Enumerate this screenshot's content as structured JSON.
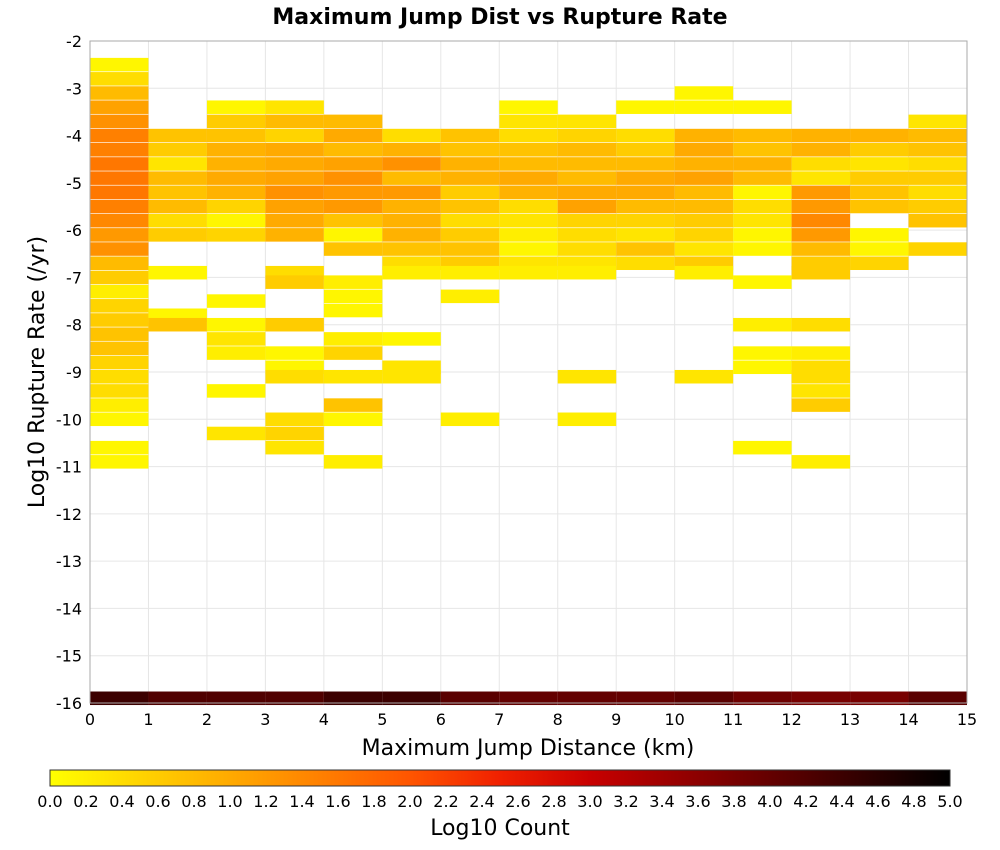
{
  "chart_data": {
    "type": "heatmap",
    "title": "Maximum Jump Dist vs Rupture Rate",
    "xlabel": "Maximum Jump Distance (km)",
    "ylabel": "Log10 Rupture Rate (/yr)",
    "xlim": [
      0,
      15
    ],
    "ylim": [
      -16,
      -2
    ],
    "x_ticks": [
      "0",
      "1",
      "2",
      "3",
      "4",
      "5",
      "6",
      "7",
      "8",
      "9",
      "10",
      "11",
      "12",
      "13",
      "14",
      "15"
    ],
    "y_ticks": [
      "-2",
      "-3",
      "-4",
      "-5",
      "-6",
      "-7",
      "-8",
      "-9",
      "-10",
      "-11",
      "-12",
      "-13",
      "-14",
      "-15",
      "-16"
    ],
    "x_bin_width": 1,
    "y_bin_height": 0.286,
    "grid": true,
    "colorbar": {
      "label": "Log10 Count",
      "min": 0.0,
      "max": 5.0,
      "ticks": [
        "0.0",
        "0.2",
        "0.4",
        "0.6",
        "0.8",
        "1.0",
        "1.2",
        "1.4",
        "1.6",
        "1.8",
        "2.0",
        "2.2",
        "2.4",
        "2.6",
        "2.8",
        "3.0",
        "3.2",
        "3.4",
        "3.6",
        "3.8",
        "4.0",
        "4.2",
        "4.4",
        "4.6",
        "4.8",
        "5.0"
      ],
      "colors": [
        "#ffff00",
        "#ffd400",
        "#ffaa00",
        "#ff8000",
        "#ff5500",
        "#f02000",
        "#c80000",
        "#960000",
        "#640000",
        "#320000",
        "#000000"
      ]
    },
    "cells": [
      [
        0,
        -2.5,
        0.1
      ],
      [
        0,
        -2.8,
        0.4
      ],
      [
        0,
        -3.1,
        0.8
      ],
      [
        0,
        -3.4,
        1.1
      ],
      [
        0,
        -3.7,
        1.3
      ],
      [
        0,
        -4.0,
        1.5
      ],
      [
        0,
        -4.3,
        1.5
      ],
      [
        0,
        -4.6,
        1.6
      ],
      [
        0,
        -4.9,
        1.6
      ],
      [
        0,
        -5.2,
        1.6
      ],
      [
        0,
        -5.5,
        1.5
      ],
      [
        0,
        -5.8,
        1.4
      ],
      [
        0,
        -6.1,
        1.2
      ],
      [
        0,
        -6.4,
        1.3
      ],
      [
        0,
        -6.7,
        0.8
      ],
      [
        0,
        -7.0,
        0.6
      ],
      [
        0,
        -7.3,
        0.2
      ],
      [
        0,
        -7.6,
        0.5
      ],
      [
        0,
        -7.9,
        0.6
      ],
      [
        0,
        -8.2,
        0.7
      ],
      [
        0,
        -8.5,
        0.7
      ],
      [
        0,
        -8.8,
        0.5
      ],
      [
        0,
        -9.1,
        0.4
      ],
      [
        0,
        -9.4,
        0.4
      ],
      [
        0,
        -9.7,
        0.2
      ],
      [
        0,
        -10.0,
        0.1
      ],
      [
        0,
        -10.6,
        0.1
      ],
      [
        0,
        -10.9,
        0.1
      ],
      [
        1,
        -4.0,
        0.7
      ],
      [
        1,
        -4.3,
        0.6
      ],
      [
        1,
        -4.6,
        0.3
      ],
      [
        1,
        -4.9,
        0.8
      ],
      [
        1,
        -5.2,
        0.7
      ],
      [
        1,
        -5.5,
        0.8
      ],
      [
        1,
        -5.8,
        0.4
      ],
      [
        1,
        -6.1,
        0.6
      ],
      [
        1,
        -6.9,
        0.1
      ],
      [
        1,
        -7.8,
        0.1
      ],
      [
        1,
        -8.0,
        0.7
      ],
      [
        2,
        -3.4,
        0.1
      ],
      [
        2,
        -3.7,
        0.6
      ],
      [
        2,
        -4.0,
        0.7
      ],
      [
        2,
        -4.3,
        0.9
      ],
      [
        2,
        -4.6,
        0.9
      ],
      [
        2,
        -4.9,
        1.0
      ],
      [
        2,
        -5.2,
        0.9
      ],
      [
        2,
        -5.5,
        0.5
      ],
      [
        2,
        -5.8,
        0.1
      ],
      [
        2,
        -6.1,
        0.5
      ],
      [
        2,
        -7.5,
        0.1
      ],
      [
        2,
        -8.0,
        0.1
      ],
      [
        2,
        -8.3,
        0.3
      ],
      [
        2,
        -8.6,
        0.2
      ],
      [
        2,
        -9.4,
        0.1
      ],
      [
        2,
        -10.3,
        0.3
      ],
      [
        3,
        -3.4,
        0.3
      ],
      [
        3,
        -3.7,
        0.8
      ],
      [
        3,
        -4.0,
        0.5
      ],
      [
        3,
        -4.3,
        1.0
      ],
      [
        3,
        -4.6,
        1.0
      ],
      [
        3,
        -4.9,
        1.1
      ],
      [
        3,
        -5.2,
        1.3
      ],
      [
        3,
        -5.5,
        1.1
      ],
      [
        3,
        -5.8,
        1.0
      ],
      [
        3,
        -6.1,
        0.9
      ],
      [
        3,
        -6.9,
        0.4
      ],
      [
        3,
        -7.1,
        0.6
      ],
      [
        3,
        -8.0,
        0.6
      ],
      [
        3,
        -8.6,
        0.1
      ],
      [
        3,
        -8.9,
        0.1
      ],
      [
        3,
        -9.1,
        0.4
      ],
      [
        3,
        -10.0,
        0.4
      ],
      [
        3,
        -10.3,
        0.5
      ],
      [
        3,
        -10.6,
        0.3
      ],
      [
        4,
        -3.7,
        0.8
      ],
      [
        4,
        -4.0,
        1.0
      ],
      [
        4,
        -4.3,
        0.8
      ],
      [
        4,
        -4.6,
        1.1
      ],
      [
        4,
        -4.9,
        1.3
      ],
      [
        4,
        -5.2,
        1.2
      ],
      [
        4,
        -5.5,
        1.2
      ],
      [
        4,
        -5.8,
        0.7
      ],
      [
        4,
        -6.1,
        0.1
      ],
      [
        4,
        -6.4,
        0.7
      ],
      [
        4,
        -7.1,
        0.2
      ],
      [
        4,
        -7.4,
        0.1
      ],
      [
        4,
        -7.7,
        0.1
      ],
      [
        4,
        -8.3,
        0.2
      ],
      [
        4,
        -8.6,
        0.5
      ],
      [
        4,
        -9.1,
        0.3
      ],
      [
        4,
        -9.7,
        0.7
      ],
      [
        4,
        -10.0,
        0.1
      ],
      [
        4,
        -10.9,
        0.2
      ],
      [
        5,
        -4.0,
        0.4
      ],
      [
        5,
        -4.3,
        0.9
      ],
      [
        5,
        -4.6,
        1.3
      ],
      [
        5,
        -4.9,
        0.8
      ],
      [
        5,
        -5.2,
        1.2
      ],
      [
        5,
        -5.5,
        0.9
      ],
      [
        5,
        -5.8,
        0.9
      ],
      [
        5,
        -6.1,
        0.9
      ],
      [
        5,
        -6.4,
        0.7
      ],
      [
        5,
        -6.7,
        0.4
      ],
      [
        5,
        -6.9,
        0.2
      ],
      [
        5,
        -8.3,
        0.1
      ],
      [
        5,
        -8.9,
        0.3
      ],
      [
        5,
        -9.1,
        0.3
      ],
      [
        6,
        -4.0,
        0.7
      ],
      [
        6,
        -4.3,
        0.7
      ],
      [
        6,
        -4.6,
        0.9
      ],
      [
        6,
        -4.9,
        0.9
      ],
      [
        6,
        -5.2,
        0.6
      ],
      [
        6,
        -5.5,
        0.7
      ],
      [
        6,
        -5.8,
        0.4
      ],
      [
        6,
        -6.1,
        0.6
      ],
      [
        6,
        -6.4,
        0.7
      ],
      [
        6,
        -6.7,
        0.6
      ],
      [
        6,
        -6.9,
        0.2
      ],
      [
        6,
        -7.4,
        0.2
      ],
      [
        6,
        -10.0,
        0.2
      ],
      [
        7,
        -3.4,
        0.1
      ],
      [
        7,
        -3.7,
        0.3
      ],
      [
        7,
        -4.0,
        0.4
      ],
      [
        7,
        -4.3,
        0.7
      ],
      [
        7,
        -4.6,
        0.8
      ],
      [
        7,
        -4.9,
        1.0
      ],
      [
        7,
        -5.2,
        0.9
      ],
      [
        7,
        -5.5,
        0.4
      ],
      [
        7,
        -5.8,
        0.3
      ],
      [
        7,
        -6.1,
        0.2
      ],
      [
        7,
        -6.4,
        0.1
      ],
      [
        7,
        -6.7,
        0.3
      ],
      [
        7,
        -6.9,
        0.2
      ],
      [
        8,
        -3.7,
        0.3
      ],
      [
        8,
        -4.0,
        0.5
      ],
      [
        8,
        -4.3,
        0.8
      ],
      [
        8,
        -4.6,
        0.8
      ],
      [
        8,
        -4.9,
        0.8
      ],
      [
        8,
        -5.2,
        1.0
      ],
      [
        8,
        -5.5,
        1.1
      ],
      [
        8,
        -5.8,
        0.5
      ],
      [
        8,
        -6.1,
        0.4
      ],
      [
        8,
        -6.4,
        0.4
      ],
      [
        8,
        -6.7,
        0.3
      ],
      [
        8,
        -6.9,
        0.2
      ],
      [
        8,
        -9.1,
        0.3
      ],
      [
        8,
        -10.0,
        0.2
      ],
      [
        9,
        -3.4,
        0.1
      ],
      [
        9,
        -4.0,
        0.4
      ],
      [
        9,
        -4.3,
        0.6
      ],
      [
        9,
        -4.6,
        0.8
      ],
      [
        9,
        -4.9,
        1.0
      ],
      [
        9,
        -5.2,
        1.0
      ],
      [
        9,
        -5.5,
        0.8
      ],
      [
        9,
        -5.8,
        0.5
      ],
      [
        9,
        -6.1,
        0.3
      ],
      [
        9,
        -6.4,
        0.7
      ],
      [
        9,
        -6.7,
        0.4
      ],
      [
        10,
        -3.1,
        0.1
      ],
      [
        10,
        -3.4,
        0.1
      ],
      [
        10,
        -4.0,
        0.9
      ],
      [
        10,
        -4.3,
        1.0
      ],
      [
        10,
        -4.6,
        0.9
      ],
      [
        10,
        -4.9,
        1.1
      ],
      [
        10,
        -5.2,
        0.8
      ],
      [
        10,
        -5.5,
        0.8
      ],
      [
        10,
        -5.8,
        0.6
      ],
      [
        10,
        -6.1,
        0.5
      ],
      [
        10,
        -6.4,
        0.3
      ],
      [
        10,
        -6.7,
        0.6
      ],
      [
        10,
        -6.9,
        0.2
      ],
      [
        10,
        -9.1,
        0.3
      ],
      [
        11,
        -3.4,
        0.1
      ],
      [
        11,
        -4.0,
        0.8
      ],
      [
        11,
        -4.3,
        0.7
      ],
      [
        11,
        -4.6,
        0.9
      ],
      [
        11,
        -4.9,
        0.8
      ],
      [
        11,
        -5.2,
        0.1
      ],
      [
        11,
        -5.5,
        0.4
      ],
      [
        11,
        -5.8,
        0.3
      ],
      [
        11,
        -6.1,
        0.1
      ],
      [
        11,
        -6.4,
        0.1
      ],
      [
        11,
        -7.1,
        0.1
      ],
      [
        11,
        -8.0,
        0.2
      ],
      [
        11,
        -8.6,
        0.1
      ],
      [
        11,
        -8.9,
        0.1
      ],
      [
        11,
        -10.6,
        0.1
      ],
      [
        12,
        -4.0,
        0.9
      ],
      [
        12,
        -4.3,
        0.9
      ],
      [
        12,
        -4.6,
        0.4
      ],
      [
        12,
        -4.9,
        0.3
      ],
      [
        12,
        -5.2,
        1.2
      ],
      [
        12,
        -5.5,
        1.2
      ],
      [
        12,
        -5.8,
        1.4
      ],
      [
        12,
        -6.1,
        1.2
      ],
      [
        12,
        -6.4,
        0.8
      ],
      [
        12,
        -6.7,
        0.6
      ],
      [
        12,
        -6.9,
        0.6
      ],
      [
        12,
        -8.0,
        0.4
      ],
      [
        12,
        -8.6,
        0.2
      ],
      [
        12,
        -8.9,
        0.4
      ],
      [
        12,
        -9.1,
        0.4
      ],
      [
        12,
        -9.4,
        0.3
      ],
      [
        12,
        -9.7,
        0.6
      ],
      [
        12,
        -10.9,
        0.2
      ],
      [
        13,
        -4.0,
        0.9
      ],
      [
        13,
        -4.3,
        0.6
      ],
      [
        13,
        -4.6,
        0.3
      ],
      [
        13,
        -4.9,
        0.6
      ],
      [
        13,
        -5.2,
        0.7
      ],
      [
        13,
        -5.5,
        0.7
      ],
      [
        13,
        -6.1,
        0.1
      ],
      [
        13,
        -6.4,
        0.1
      ],
      [
        13,
        -6.7,
        0.5
      ],
      [
        14,
        -3.7,
        0.3
      ],
      [
        14,
        -4.0,
        0.8
      ],
      [
        14,
        -4.3,
        0.7
      ],
      [
        14,
        -4.6,
        0.4
      ],
      [
        14,
        -4.9,
        0.6
      ],
      [
        14,
        -5.2,
        0.4
      ],
      [
        14,
        -5.5,
        0.6
      ],
      [
        14,
        -5.8,
        0.7
      ],
      [
        14,
        -6.4,
        0.5
      ],
      [
        0,
        -15.9,
        4.4
      ],
      [
        1,
        -15.9,
        4.2
      ],
      [
        2,
        -15.9,
        4.2
      ],
      [
        3,
        -15.9,
        4.2
      ],
      [
        4,
        -15.9,
        4.4
      ],
      [
        5,
        -15.9,
        4.4
      ],
      [
        6,
        -15.9,
        4.1
      ],
      [
        7,
        -15.9,
        4.0
      ],
      [
        8,
        -15.9,
        4.0
      ],
      [
        9,
        -15.9,
        4.0
      ],
      [
        10,
        -15.9,
        4.1
      ],
      [
        11,
        -15.9,
        3.9
      ],
      [
        12,
        -15.9,
        3.8
      ],
      [
        13,
        -15.9,
        3.8
      ],
      [
        14,
        -15.9,
        4.1
      ]
    ]
  }
}
